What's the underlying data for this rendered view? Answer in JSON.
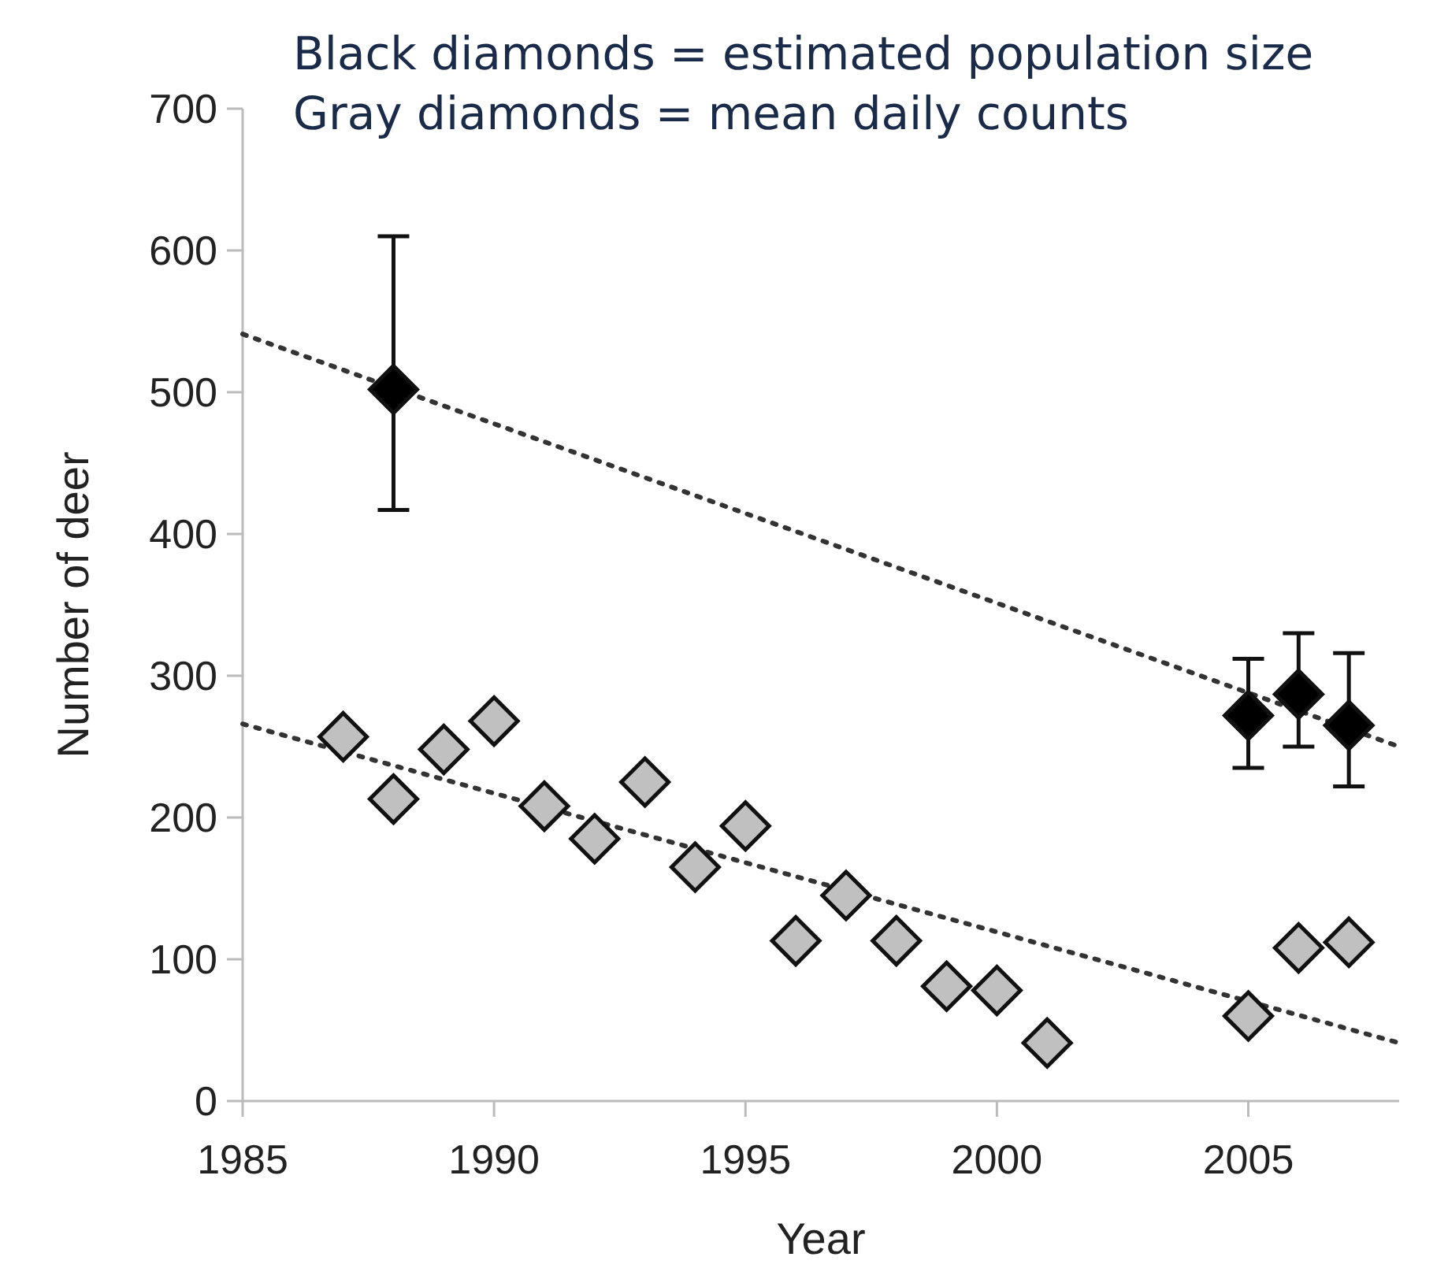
{
  "chart_data": {
    "type": "scatter",
    "xlabel": "Year",
    "ylabel": "Number of deer",
    "xlim": [
      1985,
      2008
    ],
    "xticks": [
      1985,
      1990,
      1995,
      2000,
      2005
    ],
    "ylim": [
      0,
      700
    ],
    "yticks": [
      0,
      100,
      200,
      300,
      400,
      500,
      600,
      700
    ],
    "grid": false,
    "marker": "diamond",
    "annotations": [
      "Black diamonds = estimated population size",
      "Gray diamonds = mean daily counts"
    ],
    "series": [
      {
        "type": "line",
        "color": "#333333",
        "line_style": "dotted",
        "marker": "none",
        "x": [
          1985,
          2008
        ],
        "values": [
          541,
          250
        ]
      },
      {
        "type": "line",
        "color": "#333333",
        "line_style": "dotted",
        "marker": "none",
        "x": [
          1985,
          2008
        ],
        "values": [
          266,
          41
        ]
      },
      {
        "color": "#c0c0c0",
        "x": [
          1987,
          1988,
          1989,
          1990,
          1991,
          1992,
          1993,
          1994,
          1995,
          1996,
          1997,
          1998,
          1999,
          2000,
          2001,
          2005,
          2006,
          2007
        ],
        "values": [
          257,
          213,
          248,
          268,
          208,
          185,
          225,
          165,
          194,
          113,
          145,
          113,
          81,
          78,
          41,
          60,
          108,
          112
        ]
      },
      {
        "color": "#000000",
        "x": [
          1988,
          2005,
          2006,
          2007
        ],
        "values": [
          502,
          272,
          287,
          265
        ],
        "errors": [
          [
            417,
            610
          ],
          [
            235,
            312
          ],
          [
            250,
            330
          ],
          [
            222,
            316
          ]
        ]
      }
    ]
  }
}
